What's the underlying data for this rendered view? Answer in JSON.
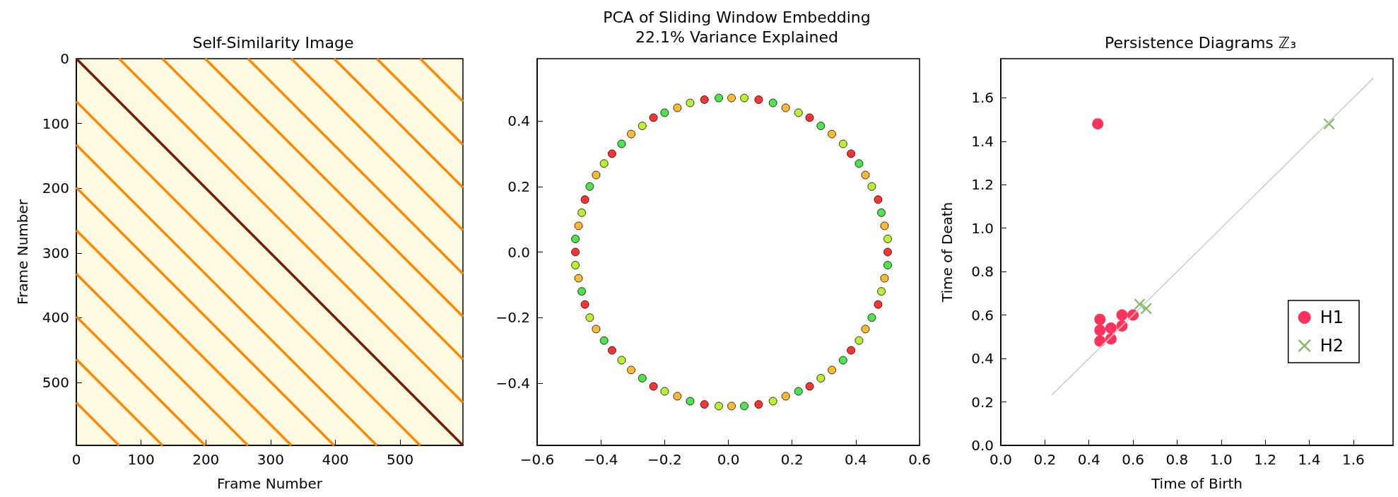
{
  "chart_data": [
    {
      "type": "line",
      "title": "Self-Similarity Image",
      "xlabel": "Frame Number",
      "ylabel": "Frame Number",
      "xlim": [
        0,
        597
      ],
      "ylim": [
        597,
        0
      ],
      "xticks": [
        0,
        100,
        200,
        300,
        400,
        500
      ],
      "yticks": [
        0,
        100,
        200,
        300,
        400,
        500
      ],
      "marker": "none",
      "series": [
        {
          "color": "#ff8800",
          "x": [
            531,
            597
          ],
          "values": [
            0,
            66
          ]
        },
        {
          "color": "#ff8800",
          "x": [
            464,
            597
          ],
          "values": [
            0,
            133
          ]
        },
        {
          "color": "#ff8800",
          "x": [
            398,
            597
          ],
          "values": [
            0,
            199
          ]
        },
        {
          "color": "#ff8800",
          "x": [
            332,
            597
          ],
          "values": [
            0,
            265
          ]
        },
        {
          "color": "#ff8800",
          "x": [
            265,
            597
          ],
          "values": [
            0,
            332
          ]
        },
        {
          "color": "#ff8800",
          "x": [
            199,
            597
          ],
          "values": [
            0,
            398
          ]
        },
        {
          "color": "#ff8800",
          "x": [
            133,
            597
          ],
          "values": [
            0,
            464
          ]
        },
        {
          "color": "#ff8800",
          "x": [
            66,
            597
          ],
          "values": [
            0,
            531
          ]
        },
        {
          "color": "#6e1e00",
          "x": [
            0,
            597
          ],
          "values": [
            0,
            597
          ]
        },
        {
          "color": "#ff8800",
          "x": [
            0,
            531
          ],
          "values": [
            66,
            597
          ]
        },
        {
          "color": "#ff8800",
          "x": [
            0,
            464
          ],
          "values": [
            133,
            597
          ]
        },
        {
          "color": "#ff8800",
          "x": [
            0,
            398
          ],
          "values": [
            199,
            597
          ]
        },
        {
          "color": "#ff8800",
          "x": [
            0,
            332
          ],
          "values": [
            265,
            597
          ]
        },
        {
          "color": "#ff8800",
          "x": [
            0,
            265
          ],
          "values": [
            332,
            597
          ]
        },
        {
          "color": "#ff8800",
          "x": [
            0,
            199
          ],
          "values": [
            398,
            597
          ]
        },
        {
          "color": "#ff8800",
          "x": [
            0,
            133
          ],
          "values": [
            464,
            597
          ]
        },
        {
          "color": "#ff8800",
          "x": [
            0,
            66
          ],
          "values": [
            531,
            597
          ]
        }
      ]
    },
    {
      "type": "scatter",
      "title": "PCA of Sliding Window Embedding",
      "subtitle": "22.1% Variance Explained",
      "xlim": [
        -0.6,
        0.6
      ],
      "ylim": [
        -0.59,
        0.59
      ],
      "xticks": [
        {
          "value": -0.6,
          "label": "−0.6"
        },
        {
          "value": -0.4,
          "label": "−0.4"
        },
        {
          "value": -0.2,
          "label": "−0.2"
        },
        {
          "value": 0,
          "label": "0.0"
        },
        0.2,
        0.4,
        0.6
      ],
      "yticks": [
        {
          "value": -0.4,
          "label": "−0.4"
        },
        {
          "value": -0.2,
          "label": "−0.2"
        },
        {
          "value": 0,
          "label": "0.0"
        },
        0.2,
        0.4
      ],
      "marker": "circle",
      "x": [
        0.5,
        0.5,
        0.49,
        0.48,
        0.47,
        0.45,
        0.43,
        0.41,
        0.385,
        0.36,
        0.325,
        0.29,
        0.255,
        0.22,
        0.18,
        0.14,
        0.095,
        0.05,
        0.01,
        -0.03,
        -0.075,
        -0.12,
        -0.16,
        -0.2,
        -0.235,
        -0.27,
        -0.305,
        -0.335,
        -0.365,
        -0.39,
        -0.415,
        -0.435,
        -0.45,
        -0.46,
        -0.47,
        -0.48,
        -0.48,
        -0.48,
        -0.47,
        -0.46,
        -0.45,
        -0.435,
        -0.415,
        -0.39,
        -0.365,
        -0.335,
        -0.305,
        -0.27,
        -0.235,
        -0.2,
        -0.16,
        -0.12,
        -0.075,
        -0.03,
        0.01,
        0.05,
        0.095,
        0.14,
        0.18,
        0.22,
        0.255,
        0.29,
        0.325,
        0.36,
        0.385,
        0.41,
        0.43,
        0.45,
        0.47,
        0.48,
        0.49,
        0.5
      ],
      "values": [
        0,
        0.04,
        0.08,
        0.12,
        0.16,
        0.2,
        0.235,
        0.27,
        0.3,
        0.33,
        0.36,
        0.385,
        0.41,
        0.425,
        0.44,
        0.455,
        0.465,
        0.47,
        0.47,
        0.47,
        0.465,
        0.455,
        0.44,
        0.425,
        0.41,
        0.385,
        0.36,
        0.33,
        0.3,
        0.27,
        0.235,
        0.2,
        0.16,
        0.12,
        0.08,
        0.04,
        0,
        -0.04,
        -0.08,
        -0.12,
        -0.16,
        -0.2,
        -0.235,
        -0.27,
        -0.3,
        -0.33,
        -0.36,
        -0.385,
        -0.41,
        -0.425,
        -0.44,
        -0.455,
        -0.465,
        -0.47,
        -0.47,
        -0.47,
        -0.465,
        -0.455,
        -0.44,
        -0.425,
        -0.41,
        -0.385,
        -0.36,
        -0.33,
        -0.3,
        -0.27,
        -0.235,
        -0.2,
        -0.16,
        -0.12,
        -0.08,
        -0.04
      ],
      "colors": [
        "#ff0000",
        "#aaee00",
        "#ffaa00",
        "#22dd22",
        "#ff0000",
        "#aaee00",
        "#ffaa00",
        "#22dd22",
        "#ff0000",
        "#aaee00",
        "#ffaa00",
        "#22dd22",
        "#ff0000",
        "#aaee00",
        "#ffaa00",
        "#22dd22",
        "#ff0000",
        "#aaee00",
        "#ffaa00",
        "#22dd22",
        "#ff0000",
        "#aaee00",
        "#ffaa00",
        "#22dd22",
        "#ff0000",
        "#aaee00",
        "#ffaa00",
        "#22dd22",
        "#ff0000",
        "#aaee00",
        "#ffaa00",
        "#22dd22",
        "#ff0000",
        "#aaee00",
        "#ffaa00",
        "#22dd22",
        "#ff0000",
        "#aaee00",
        "#ffaa00",
        "#22dd22",
        "#ff0000",
        "#aaee00",
        "#ffaa00",
        "#22dd22",
        "#ff0000",
        "#aaee00",
        "#ffaa00",
        "#22dd22",
        "#ff0000",
        "#aaee00",
        "#ffaa00",
        "#22dd22",
        "#ff0000",
        "#aaee00",
        "#ffaa00",
        "#22dd22",
        "#ff0000",
        "#aaee00",
        "#ffaa00",
        "#22dd22",
        "#ff0000",
        "#aaee00",
        "#ffaa00",
        "#22dd22",
        "#ff0000",
        "#aaee00",
        "#ffaa00",
        "#22dd22",
        "#ff0000",
        "#aaee00",
        "#ffaa00",
        "#22dd22"
      ]
    },
    {
      "type": "scatter",
      "title": "Persistence Diagrams ℤ₃",
      "xlabel": "Time of Birth",
      "ylabel": "Time of Death",
      "xlim": [
        0,
        1.78
      ],
      "ylim": [
        0,
        1.78
      ],
      "xticks": [
        {
          "value": 0,
          "label": "0.0"
        },
        0.2,
        0.4,
        0.6,
        0.8,
        {
          "value": 1,
          "label": "1.0"
        },
        1.2,
        1.4,
        1.6
      ],
      "yticks": [
        {
          "value": 0,
          "label": "0.0"
        },
        0.2,
        0.4,
        0.6,
        0.8,
        {
          "value": 1,
          "label": "1.0"
        },
        1.2,
        1.4,
        1.6
      ],
      "legend": "bottom right",
      "series": [
        {
          "name": "H1",
          "color": "#ff0033",
          "marker": "circle",
          "x": [
            0.44,
            0.45,
            0.5,
            0.45,
            0.5,
            0.45,
            0.55,
            0.55,
            0.6
          ],
          "values": [
            1.48,
            0.48,
            0.49,
            0.53,
            0.54,
            0.58,
            0.55,
            0.6,
            0.6
          ]
        },
        {
          "name": "H2",
          "color": "#66aa44",
          "marker": "cross",
          "x": [
            1.49,
            0.63,
            0.66
          ],
          "values": [
            1.48,
            0.65,
            0.63
          ]
        },
        {
          "type": "line",
          "color": "#cccccc",
          "marker": "none",
          "x": [
            0.23,
            1.69
          ],
          "values": [
            0.23,
            1.69
          ]
        }
      ]
    }
  ]
}
